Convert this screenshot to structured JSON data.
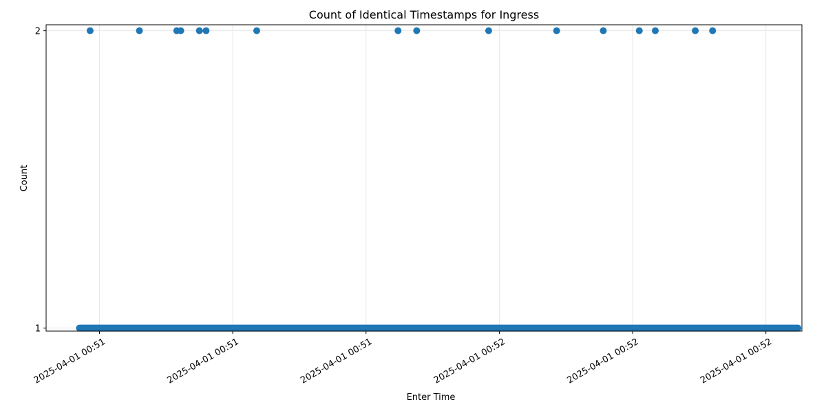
{
  "chart_data": {
    "type": "scatter",
    "title": "Count of Identical Timestamps for Ingress",
    "xlabel": "Enter Time",
    "ylabel": "Count",
    "grid": true,
    "marker_color": "#1f77b4",
    "x_tick_labels": [
      "2025-04-01 00:51",
      "2025-04-01 00:51",
      "2025-04-01 00:51",
      "2025-04-01 00:52",
      "2025-04-01 00:52",
      "2025-04-01 00:52"
    ],
    "y_ticks": [
      1,
      2
    ],
    "ylim": [
      0.99,
      2.02
    ],
    "xlim_ticks": [
      -0.4,
      5.27
    ],
    "count_one_range_ticks": [
      -0.15,
      5.24
    ],
    "count_two_ticks": [
      -0.07,
      0.3,
      0.58,
      0.61,
      0.75,
      0.8,
      1.18,
      2.24,
      2.38,
      2.92,
      3.43,
      3.78,
      4.05,
      4.17,
      4.47,
      4.6
    ]
  }
}
